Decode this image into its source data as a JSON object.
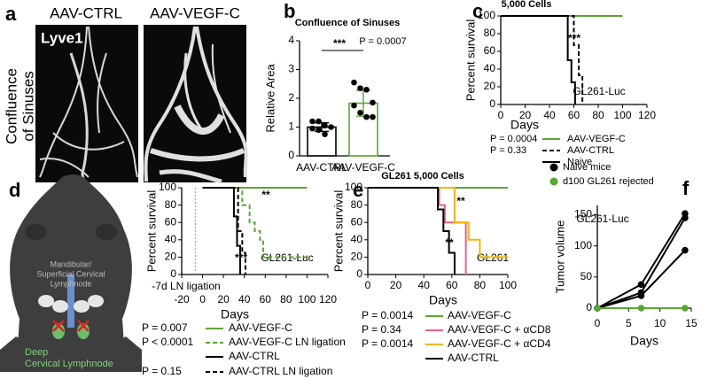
{
  "panel_a": {
    "panel_label": "a",
    "columns": [
      "AAV-CTRL",
      "AAV-VEGF-C"
    ],
    "stain": "Lyve1",
    "row_label": [
      "Confluence",
      "of Sinuses"
    ]
  },
  "panel_d_diagram": {
    "upper_node": [
      "Mandibular/",
      "Superficial Cervical",
      "Lymphnode"
    ],
    "deep_node": [
      "Deep",
      "Cervical Lymphnode"
    ]
  },
  "chart_data": [
    {
      "type": "bar",
      "panel_label": "b",
      "title": "Confluence of Sinuses",
      "ylabel": "Relative Area",
      "categories": [
        "AAV-CTRL",
        "AAV-VEGF-C"
      ],
      "colors": [
        "#000000",
        "#5ba632"
      ],
      "values": [
        1.0,
        1.83
      ],
      "errors": [
        0.15,
        0.45
      ],
      "points": [
        [
          1.2,
          1.2,
          1.05,
          1.0,
          0.95,
          0.9,
          0.75
        ],
        [
          2.55,
          2.35,
          2.3,
          1.85,
          1.75,
          1.5,
          1.35,
          1.35
        ]
      ],
      "significance": "***",
      "p_value": "P = 0.0007",
      "ylim": [
        0,
        4
      ],
      "yticks": [
        0,
        1,
        2,
        3,
        4
      ]
    },
    {
      "type": "survival",
      "panel_label": "c",
      "title": "5,000 Cells",
      "ylabel": "Percent survival",
      "xlabel": "Days",
      "annotations": [
        "***",
        "GL261-Luc"
      ],
      "xlim": [
        0,
        120
      ],
      "xticks": [
        0,
        20,
        40,
        60,
        80,
        100,
        120
      ],
      "ylim": [
        0,
        100
      ],
      "yticks": [
        0,
        20,
        40,
        60,
        80,
        100
      ],
      "series": [
        {
          "name": "AAV-VEGF-C",
          "p_value": "P = 0.0004",
          "color": "#5ba632",
          "dash": false,
          "x": [
            0,
            100
          ],
          "values": [
            100,
            100
          ]
        },
        {
          "name": "AAV-CTRL",
          "p_value": "P = 0.33",
          "color": "#000000",
          "dash": true,
          "x": [
            0,
            60,
            60,
            64,
            64,
            67,
            67
          ],
          "values": [
            100,
            100,
            67,
            67,
            33,
            33,
            0
          ]
        },
        {
          "name": "Naive",
          "color": "#000000",
          "dash": false,
          "x": [
            0,
            55,
            55,
            58,
            58,
            61,
            61
          ],
          "values": [
            100,
            100,
            50,
            50,
            25,
            25,
            0
          ]
        }
      ]
    },
    {
      "type": "survival",
      "panel_label": "d",
      "ylabel": "Percent survival",
      "xlabel": "Days",
      "annotations": [
        "**",
        "***",
        "GL261-Luc",
        "-7d LN ligation"
      ],
      "reference_line_x": -7,
      "xlim": [
        -20,
        120
      ],
      "xticks": [
        -20,
        0,
        20,
        40,
        60,
        80,
        100,
        120
      ],
      "ylim": [
        0,
        100
      ],
      "yticks": [
        0,
        20,
        40,
        60,
        80,
        100
      ],
      "series": [
        {
          "name": "AAV-VEGF-C",
          "p_value": "P = 0.007",
          "color": "#5ba632",
          "dash": false,
          "x": [
            0,
            100
          ],
          "values": [
            100,
            100
          ]
        },
        {
          "name": "AAV-VEGF-C LN ligation",
          "p_value": "P < 0.0001",
          "color": "#5ba632",
          "dash": true,
          "x": [
            0,
            38,
            38,
            45,
            45,
            50,
            50,
            55,
            55,
            58,
            58,
            100
          ],
          "values": [
            100,
            100,
            80,
            80,
            60,
            60,
            50,
            50,
            40,
            40,
            20,
            20
          ]
        },
        {
          "name": "AAV-CTRL",
          "color": "#000000",
          "dash": false,
          "x": [
            0,
            30,
            30,
            33,
            33,
            36,
            36
          ],
          "values": [
            100,
            100,
            67,
            67,
            33,
            33,
            0
          ]
        },
        {
          "name": "AAV-CTRL LN ligation",
          "p_value": "P = 0.15",
          "color": "#000000",
          "dash": true,
          "x": [
            0,
            34,
            34,
            38,
            38,
            41,
            41
          ],
          "values": [
            100,
            100,
            50,
            50,
            25,
            25,
            0
          ]
        }
      ]
    },
    {
      "type": "survival",
      "panel_label": "e",
      "title": "GL261 5,000 Cells",
      "ylabel": "Percent survival",
      "xlabel": "Days",
      "annotations": [
        "**",
        "**",
        "GL261"
      ],
      "xlim": [
        0,
        100
      ],
      "xticks": [
        0,
        20,
        40,
        60,
        80,
        100
      ],
      "ylim": [
        0,
        100
      ],
      "yticks": [
        0,
        20,
        40,
        60,
        80,
        100
      ],
      "series": [
        {
          "name": "AAV-VEGF-C",
          "p_value": "P = 0.0014",
          "color": "#5ba632",
          "dash": false,
          "x": [
            0,
            100
          ],
          "values": [
            100,
            100
          ]
        },
        {
          "name": "AAV-VEGF-C + αCD8",
          "p_value": "P = 0.34",
          "color": "#e8628a",
          "dash": false,
          "x": [
            0,
            51,
            51,
            55,
            55,
            70,
            70
          ],
          "values": [
            100,
            100,
            80,
            80,
            60,
            60,
            0
          ]
        },
        {
          "name": "AAV-VEGF-C + αCD4",
          "p_value": "P = 0.0014",
          "color": "#f2b705",
          "dash": false,
          "x": [
            0,
            62,
            62,
            72,
            72,
            80,
            80,
            100
          ],
          "values": [
            100,
            100,
            60,
            60,
            40,
            40,
            20,
            20
          ]
        },
        {
          "name": "AAV-CTRL",
          "color": "#000000",
          "dash": false,
          "x": [
            0,
            50,
            50,
            54,
            54,
            58,
            58,
            62,
            62
          ],
          "values": [
            100,
            100,
            75,
            75,
            50,
            50,
            25,
            25,
            0
          ]
        }
      ]
    },
    {
      "type": "line",
      "panel_label": "f",
      "ylabel": "Tumor volume",
      "xlabel": "Days",
      "annotations": [
        "GL261-Luc"
      ],
      "xlim": [
        0,
        15
      ],
      "xticks": [
        0,
        5,
        10,
        15
      ],
      "ylim": [
        0,
        165
      ],
      "yticks": [
        0,
        50,
        100,
        150
      ],
      "series": [
        {
          "name": "Naive mice",
          "color": "#000000",
          "x": [
            0,
            7,
            14
          ],
          "values": [
            [
              0,
              38,
              152
            ],
            [
              0,
              25,
              145
            ],
            [
              0,
              20,
              93
            ]
          ]
        },
        {
          "name": "d100 GL261 rejected",
          "color": "#5ba632",
          "x": [
            0,
            7,
            14
          ],
          "values": [
            [
              0,
              0,
              0
            ]
          ]
        }
      ]
    }
  ]
}
